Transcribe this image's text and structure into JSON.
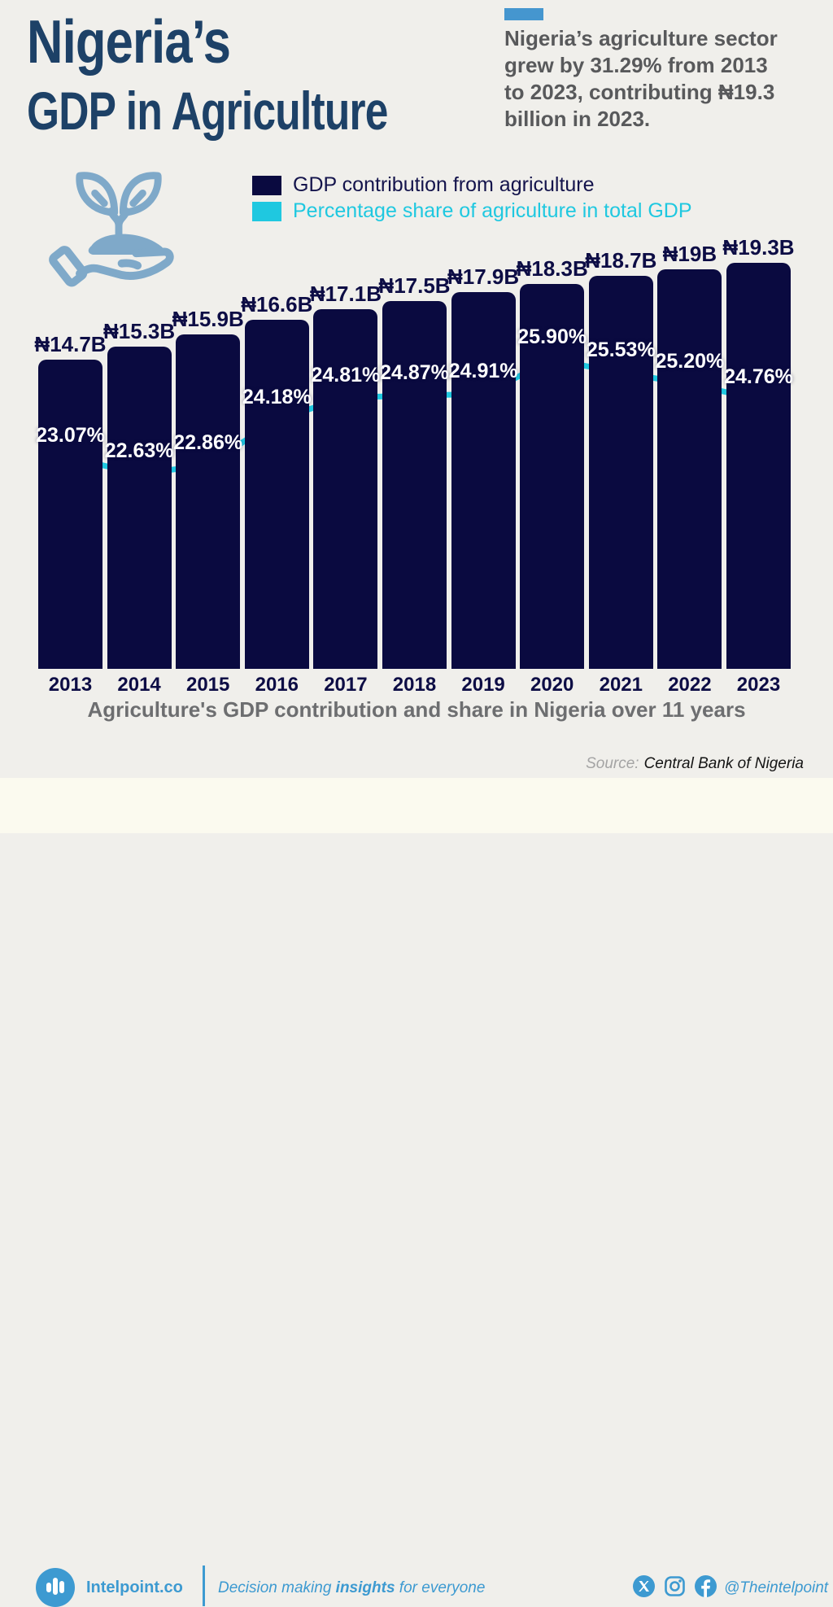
{
  "page": {
    "background": "#f0efeb"
  },
  "header": {
    "title_line1": "Nigeria’s",
    "title_line2": "GDP in Agriculture",
    "title_color": "#1d4167",
    "highlight": {
      "accent_color": "#4596cf",
      "text": "Nigeria’s agriculture sector\ngrew by 31.29% from 2013\nto 2023, contributing ₦19.3\nbillion in 2023.",
      "text_color": "#58595b"
    }
  },
  "icons": {
    "hero": "hand-holding-plant-icon",
    "hero_color": "#7fa9c9",
    "social": [
      "x-twitter-icon",
      "instagram-icon",
      "facebook-icon"
    ]
  },
  "legend": {
    "items": [
      {
        "label": "GDP contribution from agriculture",
        "swatch_color": "#0a0a40",
        "text_color": "#14144c"
      },
      {
        "label": "Percentage share of agriculture in total GDP",
        "swatch_color": "#1fc8e0",
        "text_color": "#1fc8e0"
      }
    ]
  },
  "chart_data": {
    "type": "combo-bar-line",
    "categories": [
      "2013",
      "2014",
      "2015",
      "2016",
      "2017",
      "2018",
      "2019",
      "2020",
      "2021",
      "2022",
      "2023"
    ],
    "series": [
      {
        "name": "GDP contribution from agriculture",
        "type": "bar",
        "unit": "₦ billions",
        "color": "#0a0a40",
        "values": [
          14.7,
          15.3,
          15.9,
          16.6,
          17.1,
          17.5,
          17.9,
          18.3,
          18.7,
          19.0,
          19.3
        ],
        "labels": [
          "₦14.7B",
          "₦15.3B",
          "₦15.9B",
          "₦16.6B",
          "₦17.1B",
          "₦17.5B",
          "₦17.9B",
          "₦18.3B",
          "₦18.7B",
          "₦19B",
          "₦19.3B"
        ]
      },
      {
        "name": "Percentage share of agriculture in total GDP",
        "type": "line",
        "unit": "%",
        "color": "#1fc8e0",
        "point_color": "#17bcd6",
        "values": [
          23.07,
          22.63,
          22.86,
          24.18,
          24.81,
          24.87,
          24.91,
          25.9,
          25.53,
          25.2,
          24.76
        ],
        "labels": [
          "23.07%",
          "22.63%",
          "22.86%",
          "24.18%",
          "24.81%",
          "24.87%",
          "24.91%",
          "25.90%",
          "25.53%",
          "25.20%",
          "24.76%"
        ]
      }
    ],
    "caption": "Agriculture's GDP contribution and share in Nigeria over 11 years",
    "value_axis_visible": false,
    "grid": false,
    "legend_position": "top-center"
  },
  "source": {
    "label": "Source:",
    "value": "Central Bank of Nigeria"
  },
  "footer": {
    "brand": "Intelpoint.co",
    "tagline_pre": "Decision making ",
    "tagline_bold": "insights",
    "tagline_post": " for everyone",
    "handle": "@Theintelpoint",
    "blue": "#3d9ad1",
    "background": "#fbfaef"
  }
}
